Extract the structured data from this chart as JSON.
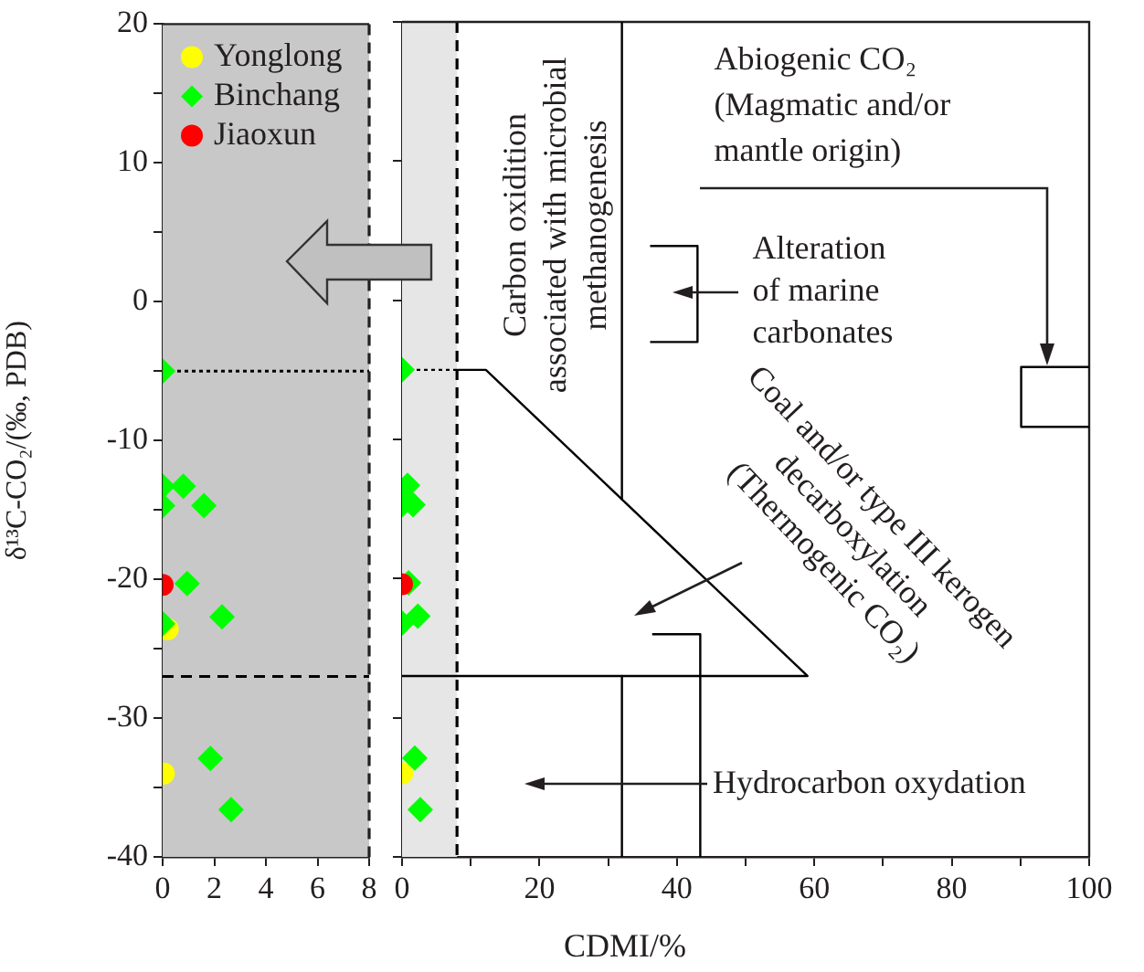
{
  "chart_data": [
    {
      "type": "scatter",
      "ylabel": "δ¹³C-CO₂/(‰, PDB)",
      "xlim": [
        0,
        8
      ],
      "xticks": [
        0,
        2,
        4,
        6,
        8
      ],
      "ylim": [
        -40,
        20
      ],
      "yticks": [
        -40,
        {
          "value": -35,
          "label": null
        },
        -30,
        {
          "value": -25,
          "label": null
        },
        -20,
        {
          "value": -15,
          "label": null
        },
        -10,
        {
          "value": -5,
          "label": null
        },
        0,
        {
          "value": 5,
          "label": null
        },
        10,
        {
          "value": 15,
          "label": null
        },
        20
      ],
      "legend": "top left",
      "grid": false,
      "bands": [
        {
          "axis": "x",
          "from": 0,
          "to": 8,
          "color": "#c8c8c8"
        }
      ],
      "ref_lines": [
        {
          "axis": "y",
          "value": -5,
          "line_style": "dotted",
          "color": "#000000"
        },
        {
          "axis": "y",
          "value": -27,
          "line_style": "dashed",
          "color": "#000000"
        }
      ],
      "series": [
        {
          "name": "Yonglong",
          "color": "#ffff00",
          "marker": "circle",
          "x": [
            0.2,
            0.05
          ],
          "values": [
            -23.6,
            -34
          ]
        },
        {
          "name": "Binchang",
          "color": "#00ff00",
          "marker": "diamond",
          "x": [
            0,
            0,
            0,
            0.8,
            1.6,
            0.95,
            0,
            2.3,
            1.85,
            2.65
          ],
          "values": [
            -5,
            -13.3,
            -14.7,
            -13.3,
            -14.7,
            -20.3,
            -23.2,
            -22.7,
            -32.9,
            -36.6
          ]
        },
        {
          "name": "Jiaoxun",
          "color": "#ff0000",
          "marker": "circle",
          "x": [
            0
          ],
          "values": [
            -20.4
          ]
        }
      ]
    },
    {
      "type": "scatter",
      "xlabel": "CDMI/%",
      "xlim": [
        0,
        100
      ],
      "xticks": [
        0,
        {
          "value": 10,
          "label": null
        },
        20,
        {
          "value": 30,
          "label": null
        },
        40,
        {
          "value": 50,
          "label": null
        },
        60,
        {
          "value": 70,
          "label": null
        },
        80,
        {
          "value": 90,
          "label": null
        },
        100
      ],
      "ylim": [
        -40,
        20
      ],
      "tick_labels": "x",
      "legend": false,
      "grid": false,
      "bands": [
        {
          "axis": "x",
          "from": 0,
          "to": 8,
          "color": "#e6e6e6"
        }
      ],
      "ref_lines": [
        {
          "axis": "x",
          "value": 8,
          "line_style": "dashed",
          "color": "#000000"
        }
      ],
      "annotations": [
        "Abiogenic CO₂\n(Magmatic and/or\nmantle origin)",
        "Carbon oxidition\nassociated with microbial\nmethanogenesis",
        "Alteration\nof marine\ncarbonates",
        "Coal and/or type III kerogen\ndecarboxylation\n(Thermogenic CO₂)",
        "Hydrocarbon oxydation"
      ],
      "series": [
        {
          "type": "line",
          "color": "#000000",
          "line_style": "dotted",
          "marker": "none",
          "x": [
            0,
            8
          ],
          "values": [
            -5,
            -5
          ]
        },
        {
          "type": "line",
          "color": "#000000",
          "line_style": "solid",
          "marker": "none",
          "x": [
            8,
            12.2,
            59,
            0
          ],
          "values": [
            -5,
            -5,
            -27,
            -27
          ]
        },
        {
          "type": "line",
          "color": "#000000",
          "line_style": "solid",
          "marker": "none",
          "x": [
            32,
            32
          ],
          "values": [
            20,
            -14.3
          ]
        },
        {
          "type": "line",
          "color": "#000000",
          "line_style": "solid",
          "marker": "none",
          "x": [
            32,
            32
          ],
          "values": [
            -27,
            -40
          ]
        },
        {
          "type": "line",
          "color": "#000000",
          "line_style": "solid",
          "marker": "none",
          "x": [
            36.4,
            43.4,
            43.4
          ],
          "values": [
            -24,
            -24,
            -40
          ]
        },
        {
          "type": "line",
          "color": "#000000",
          "line_style": "solid",
          "marker": "none",
          "x": [
            36.1,
            43,
            43,
            36.1
          ],
          "values": [
            3.9,
            3.9,
            -3,
            -3
          ]
        },
        {
          "type": "line",
          "color": "#000000",
          "line_style": "solid",
          "marker": "none",
          "x": [
            100,
            90.1,
            90.1,
            100
          ],
          "values": [
            -4.8,
            -4.8,
            -9.1,
            -9.1
          ]
        },
        {
          "color": "#ffff00",
          "marker": "circle",
          "x": [
            0.05
          ],
          "values": [
            -34
          ]
        },
        {
          "color": "#00ff00",
          "marker": "diamond",
          "x": [
            0,
            0,
            0.8,
            1.6,
            0.95,
            0,
            2.3,
            1.85,
            2.65
          ],
          "values": [
            -5,
            -14.7,
            -13.3,
            -14.7,
            -20.3,
            -23.2,
            -22.7,
            -32.9,
            -36.6
          ]
        },
        {
          "color": "#ff0000",
          "marker": "circle",
          "x": [
            0
          ],
          "values": [
            -20.4
          ]
        }
      ]
    }
  ]
}
